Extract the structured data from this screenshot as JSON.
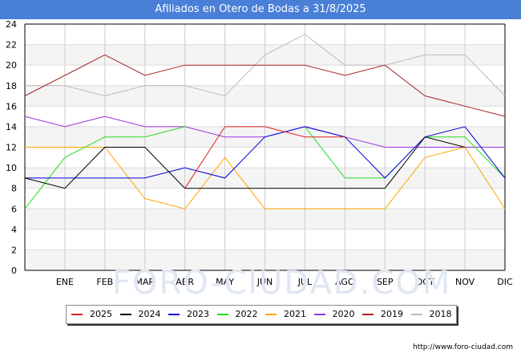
{
  "title": "Afiliados en Otero de Bodas a 31/8/2025",
  "source": "http://www.foro-ciudad.com",
  "watermark": "FORO-CIUDAD.COM",
  "chart_data": {
    "type": "line",
    "title": "Afiliados en Otero de Bodas a 31/8/2025",
    "categories": [
      "",
      "ENE",
      "FEB",
      "MAR",
      "ABR",
      "MAY",
      "JUN",
      "JUL",
      "AGO",
      "SEP",
      "OCT",
      "NOV",
      "DIC"
    ],
    "ylim": [
      0,
      24
    ],
    "yticks": [
      0,
      2,
      4,
      6,
      8,
      10,
      12,
      14,
      16,
      18,
      20,
      22,
      24
    ],
    "grid": true,
    "legend_position": "bottom",
    "series": [
      {
        "name": "2025",
        "color": "#dd2020",
        "values": [
          null,
          null,
          null,
          null,
          8,
          14,
          14,
          13,
          13,
          null,
          null,
          null,
          null
        ]
      },
      {
        "name": "2024",
        "color": "#000000",
        "values": [
          9,
          8,
          12,
          12,
          8,
          8,
          8,
          8,
          8,
          8,
          13,
          12,
          null
        ]
      },
      {
        "name": "2023",
        "color": "#0000dd",
        "values": [
          9,
          9,
          9,
          9,
          10,
          9,
          13,
          14,
          13,
          9,
          13,
          14,
          9
        ]
      },
      {
        "name": "2022",
        "color": "#22dd22",
        "values": [
          6,
          11,
          13,
          13,
          14,
          null,
          null,
          14,
          9,
          9,
          13,
          13,
          9
        ]
      },
      {
        "name": "2021",
        "color": "#ffa500",
        "values": [
          12,
          12,
          12,
          7,
          6,
          11,
          6,
          6,
          6,
          6,
          11,
          12,
          6
        ]
      },
      {
        "name": "2020",
        "color": "#9933dd",
        "values": [
          15,
          14,
          15,
          14,
          14,
          13,
          13,
          14,
          13,
          12,
          12,
          12,
          12
        ]
      },
      {
        "name": "2019",
        "color": "#aa2222",
        "values": [
          17,
          19,
          21,
          19,
          20,
          20,
          20,
          20,
          19,
          20,
          17,
          16,
          15
        ]
      },
      {
        "name": "2018",
        "color": "#bbbbbb",
        "values": [
          18,
          18,
          17,
          18,
          18,
          17,
          21,
          23,
          20,
          20,
          21,
          21,
          17
        ]
      }
    ]
  }
}
